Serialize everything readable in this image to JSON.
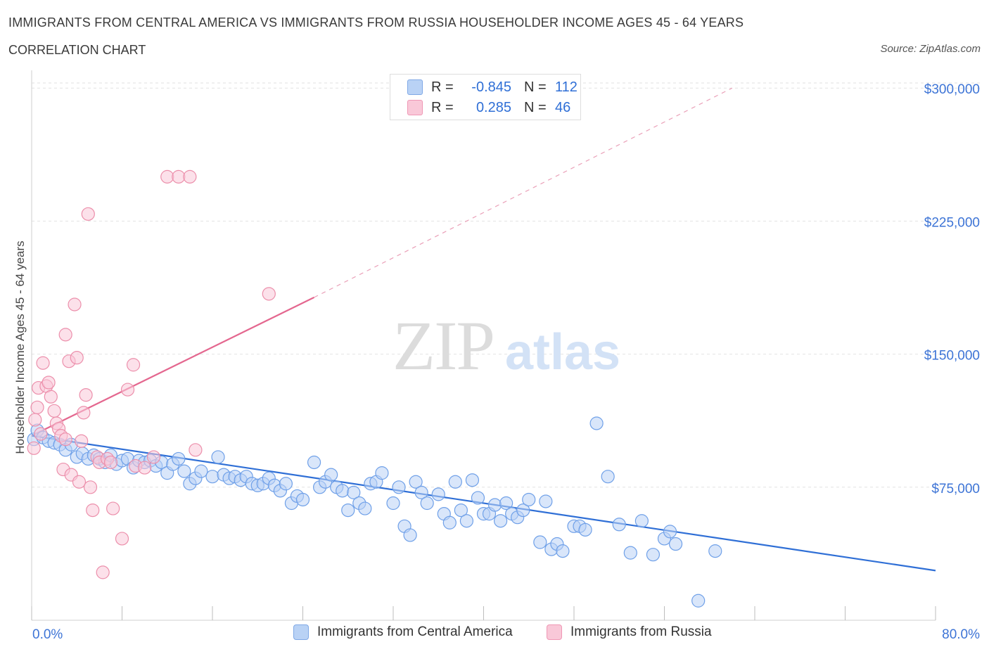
{
  "title": "IMMIGRANTS FROM CENTRAL AMERICA VS IMMIGRANTS FROM RUSSIA HOUSEHOLDER INCOME AGES 45 - 64 YEARS",
  "subtitle": "CORRELATION CHART",
  "source": "Source: ZipAtlas.com",
  "watermark": {
    "zip": "ZIP",
    "atlas": "atlas"
  },
  "stats": [
    {
      "r_label": "R =",
      "r_value": "-0.845",
      "n_label": "N =",
      "n_value": "112",
      "color": "#6fa0e8"
    },
    {
      "r_label": "R =",
      "r_value": "0.285",
      "n_label": "N =",
      "n_value": "46",
      "color": "#ec8fab"
    }
  ],
  "legend": [
    {
      "label": "Immigrants from Central America",
      "fill": "#b9d2f5",
      "stroke": "#7fa8e6"
    },
    {
      "label": "Immigrants from Russia",
      "fill": "#f9c8d8",
      "stroke": "#ef97b5"
    }
  ],
  "chart_data": {
    "type": "scatter",
    "title": "IMMIGRANTS FROM CENTRAL AMERICA VS IMMIGRANTS FROM RUSSIA HOUSEHOLDER INCOME AGES 45 - 64 YEARS",
    "xlabel": "",
    "ylabel": "Householder Income Ages 45 - 64 years",
    "xlim": [
      0,
      80
    ],
    "ylim": [
      0,
      310000
    ],
    "x_tick_labels": [
      "0.0%",
      "80.0%"
    ],
    "y_ticks": [
      75000,
      150000,
      225000,
      300000
    ],
    "y_tick_labels": [
      "$75,000",
      "$150,000",
      "$225,000",
      "$300,000"
    ],
    "grid": true,
    "legend_position": "bottom",
    "series": [
      {
        "name": "Immigrants from Central America",
        "color": "#6fa0e8",
        "trend": {
          "x": [
            0,
            80
          ],
          "y": [
            104000,
            28000
          ]
        },
        "points": [
          [
            0.2,
            102000
          ],
          [
            0.5,
            107000
          ],
          [
            1.0,
            103000
          ],
          [
            1.5,
            101000
          ],
          [
            2.0,
            100000
          ],
          [
            2.5,
            99000
          ],
          [
            3.0,
            96000
          ],
          [
            3.5,
            99000
          ],
          [
            4.0,
            92000
          ],
          [
            4.5,
            94000
          ],
          [
            5.0,
            91000
          ],
          [
            5.5,
            93000
          ],
          [
            6.0,
            91000
          ],
          [
            6.5,
            89000
          ],
          [
            7.0,
            93000
          ],
          [
            7.5,
            88000
          ],
          [
            8.0,
            90000
          ],
          [
            8.5,
            91000
          ],
          [
            9.0,
            86000
          ],
          [
            9.5,
            90000
          ],
          [
            10.0,
            89000
          ],
          [
            10.5,
            90000
          ],
          [
            11.0,
            87000
          ],
          [
            11.5,
            89000
          ],
          [
            12.0,
            83000
          ],
          [
            12.5,
            88000
          ],
          [
            13.0,
            91000
          ],
          [
            13.5,
            84000
          ],
          [
            14.0,
            77000
          ],
          [
            14.5,
            80000
          ],
          [
            15.0,
            84000
          ],
          [
            16.0,
            81000
          ],
          [
            16.5,
            92000
          ],
          [
            17.0,
            82000
          ],
          [
            17.5,
            80000
          ],
          [
            18.0,
            81000
          ],
          [
            18.5,
            79000
          ],
          [
            19.0,
            81000
          ],
          [
            19.5,
            77000
          ],
          [
            20.0,
            76000
          ],
          [
            20.5,
            77000
          ],
          [
            21.0,
            80000
          ],
          [
            21.5,
            76000
          ],
          [
            22.0,
            73000
          ],
          [
            22.5,
            77000
          ],
          [
            23.0,
            66000
          ],
          [
            23.5,
            70000
          ],
          [
            24.0,
            68000
          ],
          [
            25.0,
            89000
          ],
          [
            25.5,
            75000
          ],
          [
            26.0,
            78000
          ],
          [
            26.5,
            82000
          ],
          [
            27.0,
            75000
          ],
          [
            27.5,
            73000
          ],
          [
            28.0,
            62000
          ],
          [
            28.5,
            72000
          ],
          [
            29.0,
            66000
          ],
          [
            29.5,
            63000
          ],
          [
            30.0,
            77000
          ],
          [
            30.5,
            78000
          ],
          [
            31.0,
            83000
          ],
          [
            32.0,
            66000
          ],
          [
            32.5,
            75000
          ],
          [
            33.0,
            53000
          ],
          [
            33.5,
            48000
          ],
          [
            34.0,
            78000
          ],
          [
            34.5,
            72000
          ],
          [
            35.0,
            66000
          ],
          [
            36.0,
            71000
          ],
          [
            36.5,
            60000
          ],
          [
            37.0,
            55000
          ],
          [
            37.5,
            78000
          ],
          [
            38.0,
            62000
          ],
          [
            38.5,
            56000
          ],
          [
            39.0,
            79000
          ],
          [
            39.5,
            69000
          ],
          [
            40.0,
            60000
          ],
          [
            40.5,
            60000
          ],
          [
            41.0,
            65000
          ],
          [
            41.5,
            56000
          ],
          [
            42.0,
            66000
          ],
          [
            42.5,
            60000
          ],
          [
            43.0,
            58000
          ],
          [
            43.5,
            62000
          ],
          [
            44.0,
            68000
          ],
          [
            45.0,
            44000
          ],
          [
            45.5,
            67000
          ],
          [
            46.0,
            40000
          ],
          [
            46.5,
            43000
          ],
          [
            47.0,
            39000
          ],
          [
            48.0,
            53000
          ],
          [
            48.5,
            53000
          ],
          [
            49.0,
            51000
          ],
          [
            50.0,
            111000
          ],
          [
            51.0,
            81000
          ],
          [
            52.0,
            54000
          ],
          [
            53.0,
            38000
          ],
          [
            54.0,
            56000
          ],
          [
            55.0,
            37000
          ],
          [
            56.0,
            46000
          ],
          [
            56.5,
            50000
          ],
          [
            57.0,
            43000
          ],
          [
            59.0,
            11000
          ],
          [
            60.5,
            39000
          ]
        ]
      },
      {
        "name": "Immigrants from Russia",
        "color": "#ec8fab",
        "trend": {
          "x": [
            0,
            25
          ],
          "y": [
            104000,
            182000
          ],
          "dashed_extension": {
            "x": [
              25,
              62
            ],
            "y": [
              182000,
              300000
            ]
          }
        },
        "points": [
          [
            0.2,
            97000
          ],
          [
            0.3,
            113000
          ],
          [
            0.5,
            120000
          ],
          [
            0.6,
            131000
          ],
          [
            0.8,
            105000
          ],
          [
            1.0,
            145000
          ],
          [
            1.3,
            132000
          ],
          [
            1.5,
            134000
          ],
          [
            1.7,
            126000
          ],
          [
            2.0,
            118000
          ],
          [
            2.2,
            111000
          ],
          [
            2.4,
            108000
          ],
          [
            2.6,
            104000
          ],
          [
            2.8,
            85000
          ],
          [
            3.0,
            102000
          ],
          [
            3.0,
            161000
          ],
          [
            3.3,
            146000
          ],
          [
            3.5,
            82000
          ],
          [
            3.8,
            178000
          ],
          [
            4.0,
            148000
          ],
          [
            4.2,
            78000
          ],
          [
            4.4,
            101000
          ],
          [
            4.6,
            117000
          ],
          [
            4.8,
            127000
          ],
          [
            5.0,
            229000
          ],
          [
            5.2,
            75000
          ],
          [
            5.4,
            62000
          ],
          [
            5.8,
            92000
          ],
          [
            6.0,
            89000
          ],
          [
            6.3,
            27000
          ],
          [
            6.7,
            91000
          ],
          [
            7.0,
            89000
          ],
          [
            7.2,
            63000
          ],
          [
            8.0,
            46000
          ],
          [
            8.5,
            130000
          ],
          [
            9.0,
            144000
          ],
          [
            9.2,
            87000
          ],
          [
            10.0,
            86000
          ],
          [
            10.8,
            92000
          ],
          [
            12.0,
            250000
          ],
          [
            13.0,
            250000
          ],
          [
            14.0,
            250000
          ],
          [
            14.5,
            96000
          ],
          [
            21.0,
            184000
          ]
        ]
      }
    ]
  }
}
